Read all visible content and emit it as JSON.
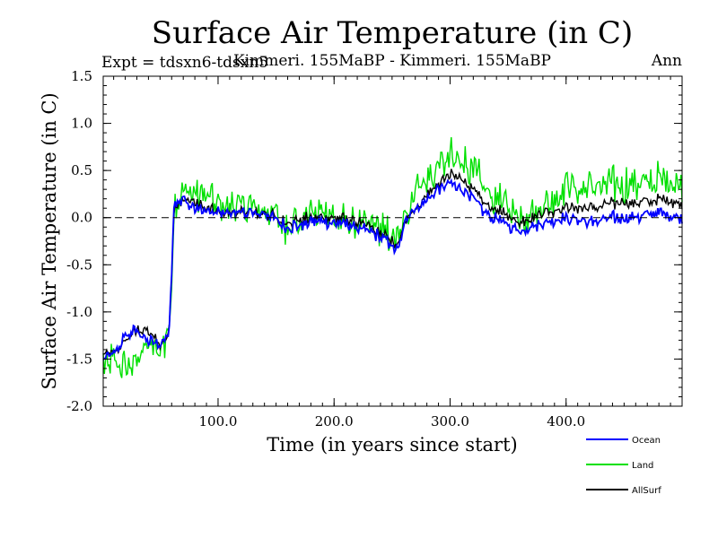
{
  "chart_data": {
    "type": "line",
    "title": "Surface Air Temperature (in C)",
    "subtitle_left": "Expt = tdsxn6-tdsxn5",
    "subtitle_center": "Kimmeri. 155MaBP - Kimmeri. 155MaBP",
    "subtitle_right": "Ann",
    "xlabel": "Time (in years since start)",
    "ylabel": "Surface Air Temperature (in C)",
    "xlim": [
      1,
      500
    ],
    "ylim": [
      -2.0,
      1.5
    ],
    "x_ticks": [
      100,
      200,
      300,
      400
    ],
    "x_tick_labels": [
      "100.0",
      "200.0",
      "300.0",
      "400.0"
    ],
    "y_ticks": [
      -2.0,
      -1.5,
      -1.0,
      -0.5,
      0.0,
      0.5,
      1.0,
      1.5
    ],
    "y_tick_labels": [
      "-2.0",
      "-1.5",
      "-1.0",
      "-0.5",
      "0.0",
      "0.5",
      "1.0",
      "1.5"
    ],
    "reference_line": 0.0,
    "series": [
      {
        "name": "Land",
        "color": "#00e000",
        "anchors": [
          [
            1,
            -1.5
          ],
          [
            10,
            -1.55
          ],
          [
            20,
            -1.6
          ],
          [
            30,
            -1.5
          ],
          [
            40,
            -1.35
          ],
          [
            50,
            -1.45
          ],
          [
            58,
            -1.2
          ],
          [
            62,
            0.1
          ],
          [
            70,
            0.3
          ],
          [
            80,
            0.25
          ],
          [
            90,
            0.2
          ],
          [
            100,
            0.1
          ],
          [
            120,
            0.1
          ],
          [
            140,
            0.1
          ],
          [
            160,
            -0.1
          ],
          [
            180,
            0.05
          ],
          [
            200,
            0.0
          ],
          [
            220,
            -0.05
          ],
          [
            240,
            -0.1
          ],
          [
            255,
            -0.25
          ],
          [
            262,
            0.05
          ],
          [
            270,
            0.3
          ],
          [
            280,
            0.45
          ],
          [
            290,
            0.55
          ],
          [
            300,
            0.65
          ],
          [
            310,
            0.6
          ],
          [
            320,
            0.5
          ],
          [
            330,
            0.3
          ],
          [
            345,
            0.15
          ],
          [
            360,
            0.0
          ],
          [
            380,
            0.15
          ],
          [
            400,
            0.3
          ],
          [
            420,
            0.3
          ],
          [
            440,
            0.35
          ],
          [
            460,
            0.35
          ],
          [
            480,
            0.4
          ],
          [
            500,
            0.35
          ]
        ],
        "noise": 0.18
      },
      {
        "name": "AllSurf",
        "color": "#000000",
        "anchors": [
          [
            1,
            -1.45
          ],
          [
            10,
            -1.45
          ],
          [
            20,
            -1.3
          ],
          [
            30,
            -1.2
          ],
          [
            40,
            -1.2
          ],
          [
            50,
            -1.35
          ],
          [
            58,
            -1.2
          ],
          [
            62,
            0.1
          ],
          [
            70,
            0.2
          ],
          [
            80,
            0.15
          ],
          [
            90,
            0.1
          ],
          [
            100,
            0.05
          ],
          [
            120,
            0.05
          ],
          [
            140,
            0.05
          ],
          [
            160,
            -0.05
          ],
          [
            180,
            0.0
          ],
          [
            200,
            0.0
          ],
          [
            220,
            -0.05
          ],
          [
            240,
            -0.15
          ],
          [
            255,
            -0.3
          ],
          [
            262,
            0.0
          ],
          [
            270,
            0.1
          ],
          [
            280,
            0.25
          ],
          [
            290,
            0.35
          ],
          [
            300,
            0.45
          ],
          [
            310,
            0.4
          ],
          [
            320,
            0.3
          ],
          [
            330,
            0.15
          ],
          [
            345,
            0.05
          ],
          [
            360,
            -0.05
          ],
          [
            380,
            0.05
          ],
          [
            400,
            0.1
          ],
          [
            420,
            0.1
          ],
          [
            440,
            0.15
          ],
          [
            460,
            0.15
          ],
          [
            480,
            0.2
          ],
          [
            500,
            0.15
          ]
        ],
        "noise": 0.06
      },
      {
        "name": "Ocean",
        "color": "#0000ff",
        "anchors": [
          [
            1,
            -1.5
          ],
          [
            10,
            -1.45
          ],
          [
            20,
            -1.25
          ],
          [
            30,
            -1.2
          ],
          [
            40,
            -1.3
          ],
          [
            50,
            -1.35
          ],
          [
            58,
            -1.2
          ],
          [
            62,
            0.15
          ],
          [
            70,
            0.2
          ],
          [
            80,
            0.1
          ],
          [
            90,
            0.05
          ],
          [
            100,
            0.05
          ],
          [
            120,
            0.05
          ],
          [
            140,
            0.05
          ],
          [
            160,
            -0.1
          ],
          [
            180,
            -0.05
          ],
          [
            200,
            -0.05
          ],
          [
            220,
            -0.1
          ],
          [
            240,
            -0.2
          ],
          [
            255,
            -0.35
          ],
          [
            262,
            0.0
          ],
          [
            270,
            0.1
          ],
          [
            280,
            0.2
          ],
          [
            290,
            0.3
          ],
          [
            300,
            0.35
          ],
          [
            310,
            0.3
          ],
          [
            320,
            0.2
          ],
          [
            330,
            0.05
          ],
          [
            345,
            -0.05
          ],
          [
            360,
            -0.15
          ],
          [
            380,
            -0.05
          ],
          [
            400,
            0.0
          ],
          [
            420,
            -0.05
          ],
          [
            440,
            0.0
          ],
          [
            460,
            0.0
          ],
          [
            480,
            0.05
          ],
          [
            500,
            0.0
          ]
        ],
        "noise": 0.06
      }
    ],
    "legend": [
      {
        "label": "Ocean",
        "color": "#0000ff"
      },
      {
        "label": "Land",
        "color": "#00e000"
      },
      {
        "label": "AllSurf",
        "color": "#000000"
      }
    ]
  }
}
